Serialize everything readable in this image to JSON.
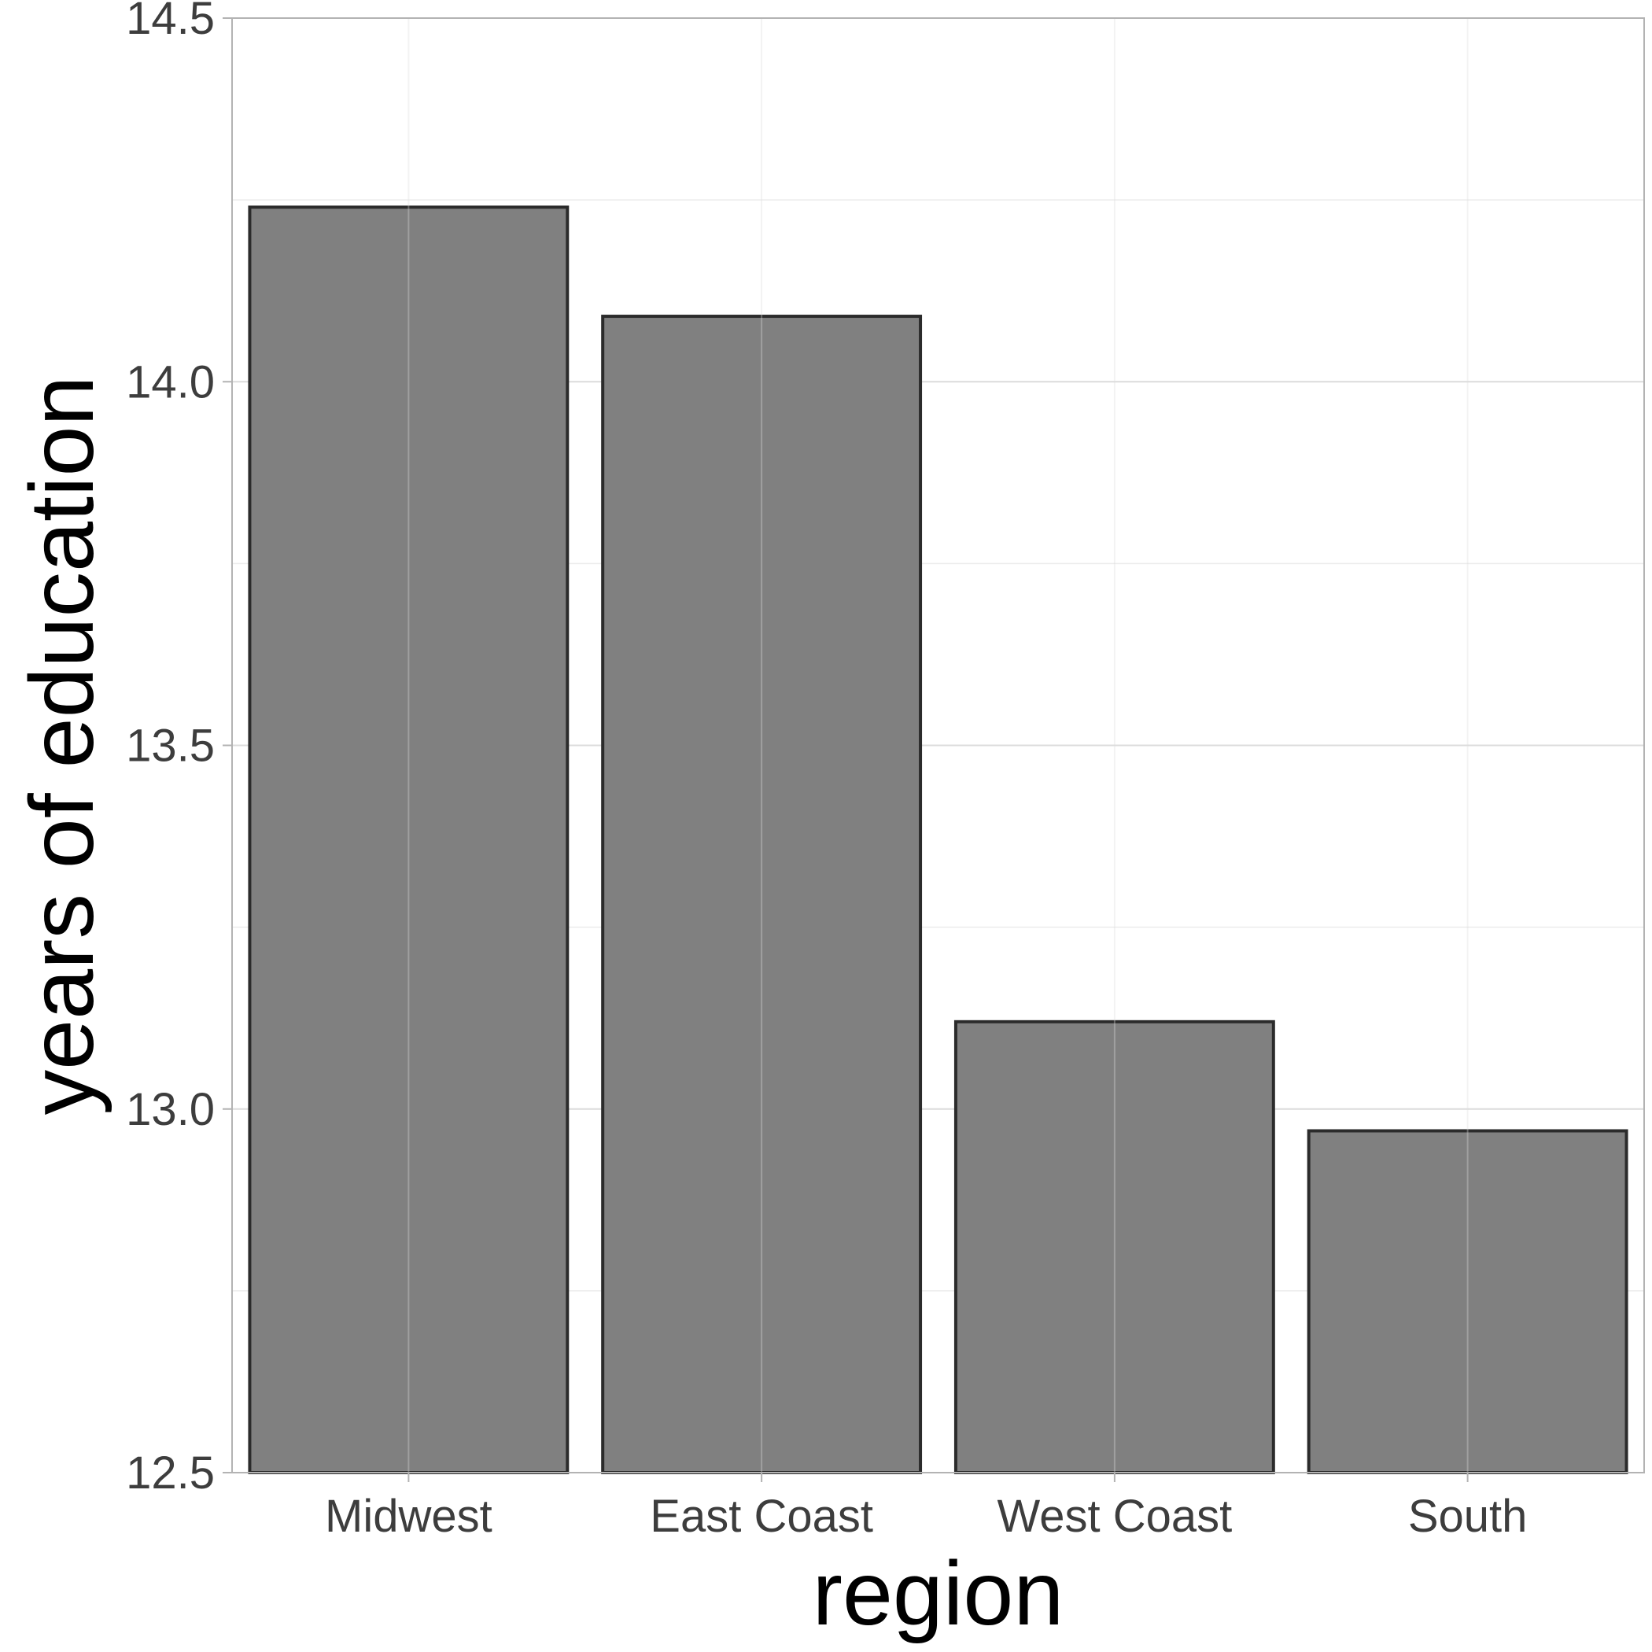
{
  "chart_data": {
    "type": "bar",
    "categories": [
      "Midwest",
      "East Coast",
      "West Coast",
      "South"
    ],
    "values": [
      14.24,
      14.09,
      13.12,
      12.97
    ],
    "xlabel": "region",
    "ylabel": "years of education",
    "ylim": [
      12.5,
      14.5
    ],
    "yticks": [
      "12.5",
      "13.0",
      "13.5",
      "14.0",
      "14.5"
    ],
    "grid": true,
    "legend": "none"
  },
  "colors": {
    "bar_fill": "#808080",
    "bar_stroke": "#2b2b2b",
    "grid_major": "#dcdcdc",
    "grid_minor": "#ececec",
    "panel_border": "#b3b3b3"
  }
}
